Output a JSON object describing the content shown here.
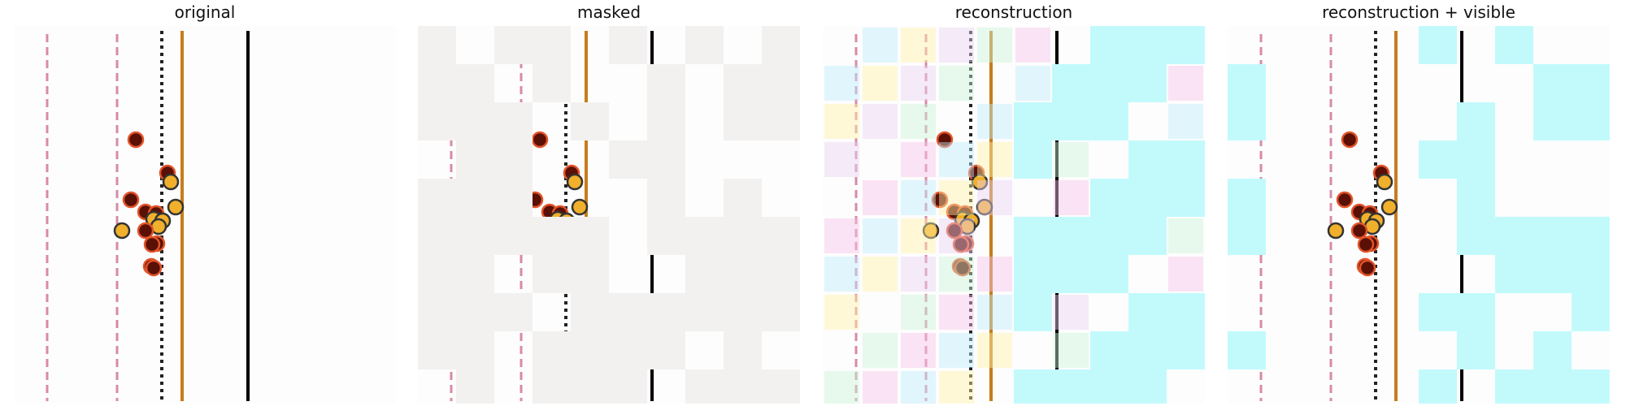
{
  "panels": {
    "original": {
      "title": "original"
    },
    "masked": {
      "title": "masked"
    },
    "reconstruction": {
      "title": "reconstruction"
    },
    "reconstruction_visible": {
      "title": "reconstruction + visible"
    }
  },
  "colors": {
    "background": "#ffffff",
    "mask_gray": "#f2f1f0",
    "recon_cyan": "#c2fafc",
    "dotted_line": "#222222",
    "orange_line": "#c67d1d",
    "black_line": "#000000",
    "pink_line": "#d88aa6",
    "marker_dark": "#5a1005",
    "marker_dark_edge": "#e2542a",
    "marker_yellow": "#f1b02b",
    "marker_yellow_edge": "#333333"
  }
}
